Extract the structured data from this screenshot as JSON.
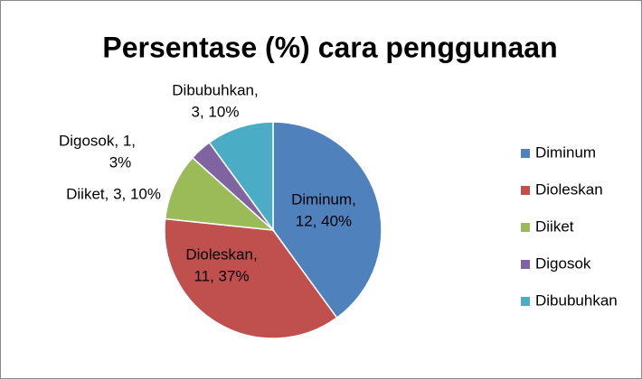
{
  "chart_data": {
    "type": "pie",
    "title": "Persentase (%) cara penggunaan",
    "categories": [
      "Diminum",
      "Dioleskan",
      "Diiket",
      "Digosok",
      "Dibubuhkan"
    ],
    "values": [
      12,
      11,
      3,
      1,
      3
    ],
    "value_labels": [
      [
        "Diminum,",
        "12, 40%"
      ],
      [
        "Dioleskan,",
        "11, 37%"
      ],
      [
        "Diiket, 3, 10%"
      ],
      [
        "Digosok, 1,",
        "3%"
      ],
      [
        "Dibubuhkan,",
        "3, 10%"
      ]
    ],
    "colors": [
      "#4f81bd",
      "#c0504d",
      "#9bbb59",
      "#8064a2",
      "#4bacc6"
    ],
    "legend": "right"
  }
}
